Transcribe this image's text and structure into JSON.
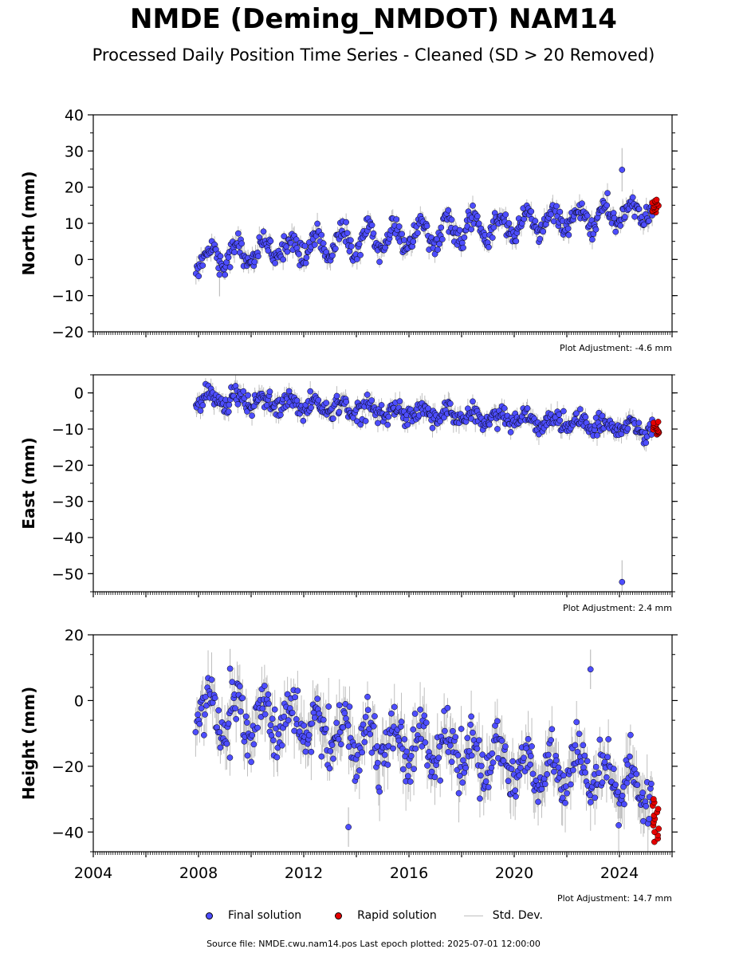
{
  "title": "NMDE (Deming_NMDOT) NAM14",
  "subtitle": "Processed Daily Position Time Series - Cleaned (SD > 20 Removed)",
  "source": "Source file: NMDE.cwu.nam14.pos  Last epoch plotted: 2025-07-01 12:00:00",
  "legend": {
    "final": "Final solution",
    "rapid": "Rapid solution",
    "sd": "Std. Dev."
  },
  "colors": {
    "final": "#4d4dff",
    "rapid": "#e60000",
    "sd": "#bfbfbf",
    "marker_edge": "#000000"
  },
  "chart_data": [
    {
      "type": "scatter",
      "ylabel": "North (mm)",
      "adjustment": "Plot Adjustment: -4.6 mm",
      "xlim": [
        2004,
        2026
      ],
      "ylim": [
        -20,
        40
      ],
      "yticks": [
        -20,
        -10,
        0,
        10,
        20,
        30,
        40
      ],
      "ytick_labels": [
        "−20",
        "−10",
        "0",
        "10",
        "20",
        "30",
        "40"
      ],
      "trend": {
        "start": [
          2007.9,
          0.5
        ],
        "end": [
          2025.4,
          13.5
        ]
      },
      "seasonal_amplitude": 3,
      "scatter_sd": 1.5,
      "outliers": [
        {
          "x": 2008.8,
          "y": -4.2
        },
        {
          "x": 2024.1,
          "y": 24.8
        }
      ],
      "rapid": {
        "x_range": [
          2025.25,
          2025.5
        ],
        "y_range": [
          13,
          16.5
        ]
      },
      "sd_band": 2
    },
    {
      "type": "scatter",
      "ylabel": "East (mm)",
      "adjustment": "Plot Adjustment: 2.4 mm",
      "xlim": [
        2004,
        2026
      ],
      "ylim": [
        -55,
        5
      ],
      "yticks": [
        -50,
        -40,
        -30,
        -20,
        -10,
        0
      ],
      "ytick_labels": [
        "−50",
        "−40",
        "−30",
        "−20",
        "−10",
        "0"
      ],
      "trend": {
        "start": [
          2007.9,
          -1.5
        ],
        "end": [
          2025.4,
          -10
        ]
      },
      "seasonal_amplitude": 1.5,
      "scatter_sd": 1.3,
      "outliers": [
        {
          "x": 2024.1,
          "y": -52.3
        }
      ],
      "rapid": {
        "x_range": [
          2025.25,
          2025.5
        ],
        "y_range": [
          -11.5,
          -8
        ]
      },
      "sd_band": 2
    },
    {
      "type": "scatter",
      "ylabel": "Height (mm)",
      "adjustment": "Plot Adjustment: 14.7 mm",
      "xlim": [
        2004,
        2026
      ],
      "ylim": [
        -46,
        20
      ],
      "yticks": [
        -40,
        -20,
        0,
        20
      ],
      "ytick_labels": [
        "−40",
        "−20",
        "0",
        "20"
      ],
      "xticks": [
        2004,
        2008,
        2012,
        2016,
        2020,
        2024
      ],
      "xtick_labels": [
        "2004",
        "2008",
        "2012",
        "2016",
        "2020",
        "2024"
      ],
      "trend": {
        "start": [
          2007.9,
          -2
        ],
        "end": [
          2025.4,
          -27
        ]
      },
      "seasonal_amplitude": 6,
      "scatter_sd": 4,
      "outliers": [
        {
          "x": 2013.7,
          "y": -38.5
        },
        {
          "x": 2022.9,
          "y": 9.5
        },
        {
          "x": 2009.2,
          "y": 9.7
        }
      ],
      "rapid": {
        "x_range": [
          2025.25,
          2025.5
        ],
        "y_range": [
          -43,
          -30
        ]
      },
      "sd_band": 6
    }
  ]
}
